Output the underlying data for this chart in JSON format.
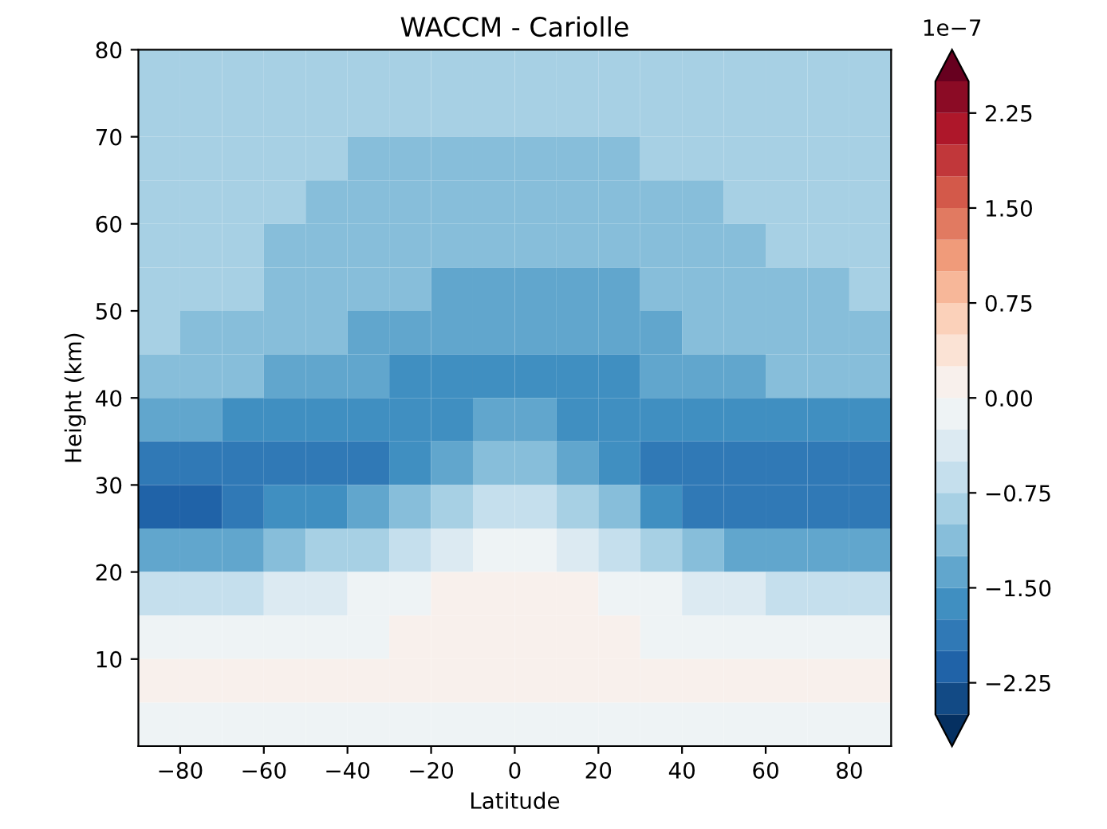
{
  "chart_data": {
    "type": "heatmap",
    "title": "WACCM - Cariolle",
    "xlabel": "Latitude",
    "ylabel": "Height (km)",
    "clabel": "1e−7",
    "xlim": [
      -90,
      90
    ],
    "ylim": [
      0,
      80
    ],
    "xticks": [
      {
        "value": -80,
        "label": "−80"
      },
      {
        "value": -60,
        "label": "−60"
      },
      {
        "value": -40,
        "label": "−40"
      },
      {
        "value": -20,
        "label": "−20"
      },
      0,
      20,
      40,
      60,
      80
    ],
    "yticks": [
      10,
      20,
      30,
      40,
      50,
      60,
      70,
      80
    ],
    "clim": [
      -2.5,
      2.5
    ],
    "cticks": [
      {
        "value": -2.25,
        "label": "−2.25"
      },
      {
        "value": -1.5,
        "label": "−1.50"
      },
      {
        "value": -0.75,
        "label": "−0.75"
      },
      {
        "value": 0,
        "label": "0.00"
      },
      {
        "value": 0.75,
        "label": "0.75"
      },
      {
        "value": 1.5,
        "label": "1.50"
      },
      {
        "value": 2.25,
        "label": "2.25"
      }
    ],
    "grid": false,
    "cells": [
      [
        -0.875,
        -0.875,
        -0.875,
        -0.875,
        -0.875,
        -0.875,
        -0.875,
        -0.875,
        -0.875,
        -0.875,
        -0.875,
        -0.875,
        -0.875,
        -0.875,
        -0.875,
        -0.875,
        -0.875,
        -0.875
      ],
      [
        -0.875,
        -0.875,
        -0.875,
        -0.875,
        -0.875,
        -0.875,
        -0.875,
        -0.875,
        -0.875,
        -0.875,
        -0.875,
        -0.875,
        -0.875,
        -0.875,
        -0.875,
        -0.875,
        -0.875,
        -0.875
      ],
      [
        -0.875,
        -0.875,
        -0.875,
        -0.875,
        -0.875,
        -1.125,
        -1.125,
        -1.125,
        -1.125,
        -1.125,
        -1.125,
        -1.125,
        -0.875,
        -0.875,
        -0.875,
        -0.875,
        -0.875,
        -0.875
      ],
      [
        -0.875,
        -0.875,
        -0.875,
        -0.875,
        -1.125,
        -1.125,
        -1.125,
        -1.125,
        -1.125,
        -1.125,
        -1.125,
        -1.125,
        -1.125,
        -1.125,
        -0.875,
        -0.875,
        -0.875,
        -0.875
      ],
      [
        -0.875,
        -0.875,
        -0.875,
        -1.125,
        -1.125,
        -1.125,
        -1.125,
        -1.125,
        -1.125,
        -1.125,
        -1.125,
        -1.125,
        -1.125,
        -1.125,
        -1.125,
        -0.875,
        -0.875,
        -0.875
      ],
      [
        -0.875,
        -0.875,
        -0.875,
        -1.125,
        -1.125,
        -1.125,
        -1.125,
        -1.375,
        -1.375,
        -1.375,
        -1.375,
        -1.375,
        -1.125,
        -1.125,
        -1.125,
        -1.125,
        -1.125,
        -0.875
      ],
      [
        -0.875,
        -1.125,
        -1.125,
        -1.125,
        -1.125,
        -1.375,
        -1.375,
        -1.375,
        -1.375,
        -1.375,
        -1.375,
        -1.375,
        -1.375,
        -1.125,
        -1.125,
        -1.125,
        -1.125,
        -1.125
      ],
      [
        -1.125,
        -1.125,
        -1.125,
        -1.375,
        -1.375,
        -1.375,
        -1.625,
        -1.625,
        -1.625,
        -1.625,
        -1.625,
        -1.625,
        -1.375,
        -1.375,
        -1.375,
        -1.125,
        -1.125,
        -1.125
      ],
      [
        -1.375,
        -1.375,
        -1.625,
        -1.625,
        -1.625,
        -1.625,
        -1.625,
        -1.625,
        -1.375,
        -1.375,
        -1.625,
        -1.625,
        -1.625,
        -1.625,
        -1.625,
        -1.625,
        -1.625,
        -1.625
      ],
      [
        -1.875,
        -1.875,
        -1.875,
        -1.875,
        -1.875,
        -1.875,
        -1.625,
        -1.375,
        -1.125,
        -1.125,
        -1.375,
        -1.625,
        -1.875,
        -1.875,
        -1.875,
        -1.875,
        -1.875,
        -1.875
      ],
      [
        -2.125,
        -2.125,
        -1.875,
        -1.625,
        -1.625,
        -1.375,
        -1.125,
        -0.875,
        -0.625,
        -0.625,
        -0.875,
        -1.125,
        -1.625,
        -1.875,
        -1.875,
        -1.875,
        -1.875,
        -1.875
      ],
      [
        -1.375,
        -1.375,
        -1.375,
        -1.125,
        -0.875,
        -0.875,
        -0.625,
        -0.375,
        -0.125,
        -0.125,
        -0.375,
        -0.625,
        -0.875,
        -1.125,
        -1.375,
        -1.375,
        -1.375,
        -1.375
      ],
      [
        -0.625,
        -0.625,
        -0.625,
        -0.375,
        -0.375,
        -0.125,
        -0.125,
        0.125,
        0.125,
        0.125,
        0.125,
        -0.125,
        -0.125,
        -0.375,
        -0.375,
        -0.625,
        -0.625,
        -0.625
      ],
      [
        -0.125,
        -0.125,
        -0.125,
        -0.125,
        -0.125,
        -0.125,
        0.125,
        0.125,
        0.125,
        0.125,
        0.125,
        0.125,
        -0.125,
        -0.125,
        -0.125,
        -0.125,
        -0.125,
        -0.125
      ],
      [
        0.125,
        0.125,
        0.125,
        0.125,
        0.125,
        0.125,
        0.125,
        0.125,
        0.125,
        0.125,
        0.125,
        0.125,
        0.125,
        0.125,
        0.125,
        0.125,
        0.125,
        0.125
      ],
      [
        -0.125,
        -0.125,
        -0.125,
        -0.125,
        -0.125,
        -0.125,
        -0.125,
        -0.125,
        -0.125,
        -0.125,
        -0.125,
        -0.125,
        -0.125,
        -0.125,
        -0.125,
        -0.125,
        -0.125,
        -0.125
      ]
    ]
  }
}
